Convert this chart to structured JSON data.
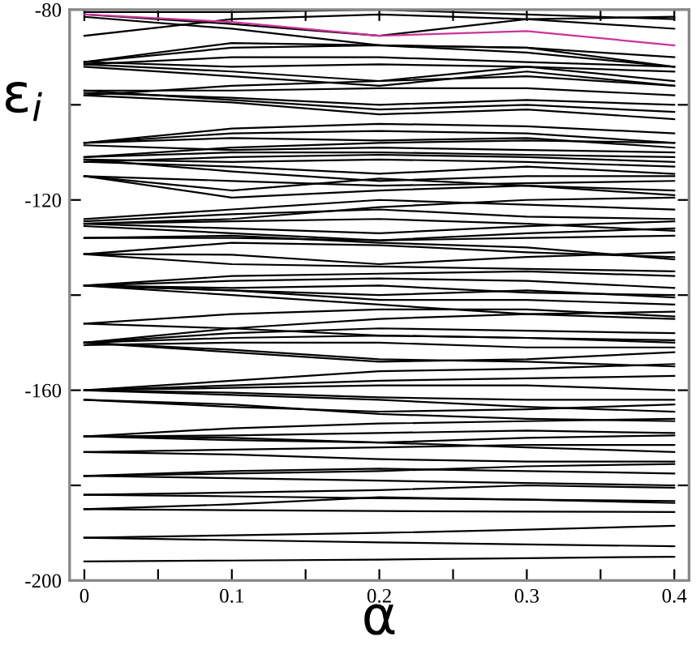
{
  "chart_data": {
    "type": "line",
    "xlabel": "α",
    "ylabel": "ε$_{i}$",
    "x": [
      0,
      0.1,
      0.2,
      0.3,
      0.4
    ],
    "xlim": [
      -0.01,
      0.41
    ],
    "ylim": [
      -200,
      -80
    ],
    "xticks": [
      0,
      {
        "value": 0.05,
        "label": null
      },
      0.1,
      {
        "value": 0.15,
        "label": null
      },
      0.2,
      {
        "value": 0.25,
        "label": null
      },
      0.3,
      {
        "value": 0.35,
        "label": null
      },
      0.4
    ],
    "yticks": [
      -200,
      {
        "value": -180,
        "label": null
      },
      -160,
      {
        "value": -140,
        "label": null
      },
      -120,
      {
        "value": -100,
        "label": null
      },
      -80
    ],
    "grid": false,
    "legend": false,
    "marker": "none",
    "line_style": "solid",
    "series": [
      {
        "color": "#000000",
        "values": [
          -196,
          -195.8,
          -195.6,
          -195.3,
          -195
        ]
      },
      {
        "color": "#000000",
        "values": [
          -191,
          -191.5,
          -192,
          -192.4,
          -192.8
        ]
      },
      {
        "color": "#000000",
        "values": [
          -191,
          -190.5,
          -190,
          -189.3,
          -188.5
        ]
      },
      {
        "color": "#000000",
        "values": [
          -185,
          -185.2,
          -185.4,
          -185.5,
          -185.6
        ]
      },
      {
        "color": "#000000",
        "values": [
          -185,
          -184,
          -182.5,
          -183,
          -183.7
        ]
      },
      {
        "color": "#000000",
        "values": [
          -182,
          -181.5,
          -181,
          -180,
          -180.5
        ]
      },
      {
        "color": "#000000",
        "values": [
          -182,
          -182.3,
          -182.7,
          -183,
          -183.3
        ]
      },
      {
        "color": "#000000",
        "values": [
          -178,
          -177,
          -176.5,
          -177,
          -177.5
        ]
      },
      {
        "color": "#000000",
        "values": [
          -178,
          -178.5,
          -179,
          -179.5,
          -180
        ]
      },
      {
        "color": "#000000",
        "values": [
          -178,
          -177.5,
          -177,
          -176,
          -175.5
        ]
      },
      {
        "color": "#000000",
        "values": [
          -173,
          -173.5,
          -174.5,
          -175,
          -175
        ]
      },
      {
        "color": "#000000",
        "values": [
          -173,
          -172.5,
          -172,
          -171.5,
          -171.5
        ]
      },
      {
        "color": "#000000",
        "values": [
          -169.7,
          -168,
          -167,
          -166.5,
          -166
        ]
      },
      {
        "color": "#000000",
        "values": [
          -169.7,
          -170,
          -171,
          -172,
          -173
        ]
      },
      {
        "color": "#000000",
        "values": [
          -169.7,
          -169.5,
          -169,
          -168.5,
          -169
        ]
      },
      {
        "color": "#000000",
        "values": [
          -169.7,
          -170.5,
          -171,
          -170,
          -169.5
        ]
      },
      {
        "color": "#000000",
        "values": [
          -162,
          -163,
          -165,
          -166,
          -166.5
        ]
      },
      {
        "color": "#000000",
        "values": [
          -162,
          -163.5,
          -164.5,
          -164,
          -163
        ]
      },
      {
        "color": "#000000",
        "values": [
          -160,
          -159,
          -158,
          -157.5,
          -157
        ]
      },
      {
        "color": "#000000",
        "values": [
          -160,
          -158,
          -156,
          -155.5,
          -154.5
        ]
      },
      {
        "color": "#000000",
        "values": [
          -160,
          -160.5,
          -161.5,
          -162,
          -162
        ]
      },
      {
        "color": "#000000",
        "values": [
          -160,
          -161,
          -162,
          -163.5,
          -164.5
        ]
      },
      {
        "color": "#000000",
        "values": [
          -160,
          -159.5,
          -159,
          -159,
          -160
        ]
      },
      {
        "color": "#000000",
        "values": [
          -150,
          -152,
          -154,
          -153.5,
          -152
        ]
      },
      {
        "color": "#000000",
        "values": [
          -150,
          -151.5,
          -153.5,
          -154,
          -155
        ]
      },
      {
        "color": "#000000",
        "values": [
          -150,
          -148,
          -147,
          -147.5,
          -148
        ]
      },
      {
        "color": "#000000",
        "values": [
          -150,
          -149,
          -148.5,
          -149,
          -149.5
        ]
      },
      {
        "color": "#000000",
        "values": [
          -150.5,
          -150,
          -150,
          -151,
          -151
        ]
      },
      {
        "color": "#000000",
        "values": [
          -150,
          -147,
          -145,
          -144,
          -143.5
        ]
      },
      {
        "color": "#000000",
        "values": [
          -146,
          -144,
          -143,
          -143,
          -144.5
        ]
      },
      {
        "color": "#000000",
        "values": [
          -146,
          -147,
          -148.5,
          -149,
          -150
        ]
      },
      {
        "color": "#000000",
        "values": [
          -138,
          -139,
          -141,
          -141,
          -142
        ]
      },
      {
        "color": "#000000",
        "values": [
          -138,
          -140,
          -142,
          -144,
          -145
        ]
      },
      {
        "color": "#000000",
        "values": [
          -138,
          -136,
          -135.5,
          -135,
          -136
        ]
      },
      {
        "color": "#000000",
        "values": [
          -138,
          -137,
          -136.5,
          -137,
          -138.5
        ]
      },
      {
        "color": "#000000",
        "values": [
          -138,
          -138.5,
          -138,
          -139.5,
          -140
        ]
      },
      {
        "color": "#000000",
        "values": [
          -138,
          -139,
          -140,
          -139,
          -140.5
        ]
      },
      {
        "color": "#000000",
        "values": [
          -131.4,
          -133.5,
          -134,
          -134.5,
          -135
        ]
      },
      {
        "color": "#000000",
        "values": [
          -131.4,
          -129,
          -129.5,
          -131,
          -132
        ]
      },
      {
        "color": "#000000",
        "values": [
          -131.4,
          -131.5,
          -133.5,
          -132,
          -131
        ]
      },
      {
        "color": "#000000",
        "values": [
          -128,
          -127.5,
          -129,
          -130,
          -132.5
        ]
      },
      {
        "color": "#000000",
        "values": [
          -128,
          -128,
          -128.5,
          -128,
          -127.5
        ]
      },
      {
        "color": "#000000",
        "values": [
          -124.5,
          -123,
          -122,
          -123.5,
          -124
        ]
      },
      {
        "color": "#000000",
        "values": [
          -125,
          -124,
          -121.5,
          -120,
          -119.5
        ]
      },
      {
        "color": "#000000",
        "values": [
          -125,
          -126,
          -127,
          -125.5,
          -124.5
        ]
      },
      {
        "color": "#000000",
        "values": [
          -125.5,
          -127,
          -128.5,
          -127,
          -126
        ]
      },
      {
        "color": "#000000",
        "values": [
          -125,
          -124.5,
          -124,
          -125,
          -126.5
        ]
      },
      {
        "color": "#000000",
        "values": [
          -124,
          -122,
          -120,
          -121,
          -122
        ]
      },
      {
        "color": "#000000",
        "values": [
          -115,
          -118,
          -115.5,
          -117,
          -118
        ]
      },
      {
        "color": "#000000",
        "values": [
          -115,
          -116,
          -117,
          -116.5,
          -116
        ]
      },
      {
        "color": "#000000",
        "values": [
          -115,
          -119.5,
          -118,
          -117,
          -119
        ]
      },
      {
        "color": "#000000",
        "values": [
          -111.5,
          -114,
          -116,
          -115,
          -115
        ]
      },
      {
        "color": "#000000",
        "values": [
          -112,
          -113,
          -114.5,
          -113,
          -114.5
        ]
      },
      {
        "color": "#000000",
        "values": [
          -112,
          -111,
          -110.5,
          -111,
          -112
        ]
      },
      {
        "color": "#000000",
        "values": [
          -111,
          -110,
          -110,
          -110.5,
          -111
        ]
      },
      {
        "color": "#000000",
        "values": [
          -111.5,
          -112,
          -111.5,
          -112,
          -113
        ]
      },
      {
        "color": "#000000",
        "values": [
          -111,
          -109,
          -108,
          -107.5,
          -108
        ]
      },
      {
        "color": "#000000",
        "values": [
          -108,
          -105,
          -104,
          -104.5,
          -106
        ]
      },
      {
        "color": "#000000",
        "values": [
          -108,
          -106,
          -105.5,
          -106,
          -108
        ]
      },
      {
        "color": "#000000",
        "values": [
          -108,
          -107,
          -107.5,
          -107,
          -109
        ]
      },
      {
        "color": "#000000",
        "values": [
          -108.5,
          -109.5,
          -109,
          -109.5,
          -110
        ]
      },
      {
        "color": "#000000",
        "values": [
          -97,
          -99,
          -101,
          -100,
          -101.5
        ]
      },
      {
        "color": "#000000",
        "values": [
          -97.5,
          -98.5,
          -100,
          -99,
          -100
        ]
      },
      {
        "color": "#000000",
        "values": [
          -98,
          -96,
          -95,
          -94,
          -96
        ]
      },
      {
        "color": "#000000",
        "values": [
          -97,
          -97,
          -96.5,
          -96.5,
          -98
        ]
      },
      {
        "color": "#000000",
        "values": [
          -98,
          -99.5,
          -102,
          -101,
          -103
        ]
      },
      {
        "color": "#000000",
        "values": [
          -91,
          -88,
          -87.5,
          -89,
          -92
        ]
      },
      {
        "color": "#000000",
        "values": [
          -91,
          -87,
          -87.5,
          -88,
          -90
        ]
      },
      {
        "color": "#000000",
        "values": [
          -91.5,
          -93,
          -95,
          -92,
          -95
        ]
      },
      {
        "color": "#000000",
        "values": [
          -91,
          -92,
          -91.5,
          -92,
          -93
        ]
      },
      {
        "color": "#000000",
        "values": [
          -92,
          -94,
          -96,
          -93,
          -96
        ]
      },
      {
        "color": "#000000",
        "values": [
          -91.5,
          -90,
          -90,
          -91,
          -92
        ]
      },
      {
        "color": "#000000",
        "values": [
          -85.5,
          -82,
          -81,
          -82,
          -84
        ]
      },
      {
        "color": "#000000",
        "values": [
          -81,
          -83,
          -85.5,
          -82,
          -81.5
        ]
      },
      {
        "color": "#000000",
        "values": [
          -80.5,
          -80.5,
          -80,
          -81,
          -82
        ]
      },
      {
        "color": "#000000",
        "values": [
          -81.5,
          -84,
          -87.5,
          -88,
          -92
        ]
      },
      {
        "color": "#cc3399",
        "values": [
          -81,
          -82.6,
          -85.5,
          -84.5,
          -87.5
        ]
      }
    ]
  }
}
